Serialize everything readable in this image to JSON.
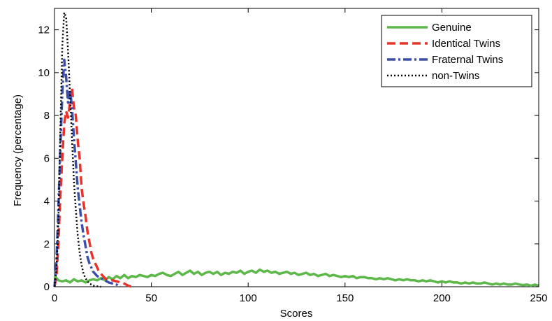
{
  "chart_data": {
    "type": "line",
    "title": "",
    "xlabel": "Scores",
    "ylabel": "Frequency (percentage)",
    "xlim": [
      0,
      250
    ],
    "ylim": [
      0,
      13
    ],
    "xticks": [
      0,
      50,
      100,
      150,
      200,
      250
    ],
    "yticks": [
      0,
      2,
      4,
      6,
      8,
      10,
      12
    ],
    "grid": false,
    "legend_position": "top-right",
    "series": [
      {
        "name": "Genuine",
        "color": "#5cb848",
        "style": "solid",
        "x": [
          0,
          2,
          4,
          6,
          8,
          10,
          12,
          14,
          16,
          18,
          20,
          22,
          24,
          26,
          28,
          30,
          32,
          34,
          36,
          38,
          40,
          42,
          44,
          46,
          48,
          50,
          52,
          54,
          56,
          58,
          60,
          62,
          64,
          66,
          68,
          70,
          72,
          74,
          76,
          78,
          80,
          82,
          84,
          86,
          88,
          90,
          92,
          94,
          96,
          98,
          100,
          102,
          104,
          106,
          108,
          110,
          112,
          114,
          116,
          118,
          120,
          122,
          124,
          126,
          128,
          130,
          132,
          134,
          136,
          138,
          140,
          142,
          144,
          146,
          148,
          150,
          152,
          154,
          156,
          158,
          160,
          162,
          164,
          166,
          168,
          170,
          172,
          174,
          176,
          178,
          180,
          182,
          184,
          186,
          188,
          190,
          192,
          194,
          196,
          198,
          200,
          202,
          204,
          206,
          208,
          210,
          212,
          214,
          216,
          218,
          220,
          222,
          224,
          226,
          228,
          230,
          232,
          234,
          236,
          238,
          240,
          242,
          244,
          246,
          248,
          250
        ],
        "y": [
          0.5,
          0.3,
          0.25,
          0.3,
          0.2,
          0.35,
          0.25,
          0.3,
          0.2,
          0.3,
          0.35,
          0.3,
          0.4,
          0.3,
          0.45,
          0.35,
          0.5,
          0.4,
          0.55,
          0.4,
          0.5,
          0.45,
          0.55,
          0.5,
          0.45,
          0.55,
          0.5,
          0.6,
          0.65,
          0.55,
          0.5,
          0.6,
          0.7,
          0.55,
          0.65,
          0.75,
          0.6,
          0.7,
          0.55,
          0.65,
          0.7,
          0.6,
          0.7,
          0.55,
          0.65,
          0.6,
          0.7,
          0.65,
          0.75,
          0.6,
          0.7,
          0.75,
          0.65,
          0.8,
          0.7,
          0.75,
          0.65,
          0.7,
          0.6,
          0.65,
          0.7,
          0.6,
          0.65,
          0.55,
          0.6,
          0.65,
          0.55,
          0.6,
          0.5,
          0.55,
          0.6,
          0.5,
          0.55,
          0.5,
          0.45,
          0.5,
          0.45,
          0.5,
          0.4,
          0.45,
          0.45,
          0.4,
          0.4,
          0.35,
          0.4,
          0.35,
          0.4,
          0.35,
          0.3,
          0.35,
          0.3,
          0.35,
          0.3,
          0.3,
          0.25,
          0.3,
          0.25,
          0.3,
          0.25,
          0.2,
          0.25,
          0.2,
          0.25,
          0.2,
          0.2,
          0.15,
          0.2,
          0.15,
          0.2,
          0.15,
          0.15,
          0.2,
          0.15,
          0.1,
          0.15,
          0.1,
          0.15,
          0.1,
          0.1,
          0.15,
          0.1,
          0.08,
          0.1,
          0.05,
          0.1,
          0.05
        ]
      },
      {
        "name": "Identical Twins",
        "color": "#e8322b",
        "style": "dashed",
        "x": [
          0,
          1,
          2,
          3,
          4,
          5,
          6,
          7,
          8,
          9,
          10,
          11,
          12,
          13,
          14,
          15,
          16,
          17,
          18,
          19,
          20,
          21,
          22,
          23,
          24,
          25,
          26,
          27,
          28,
          30,
          32,
          34,
          36,
          38,
          40
        ],
        "y": [
          0,
          0.5,
          2.0,
          4.2,
          6.0,
          7.6,
          8.2,
          7.9,
          8.6,
          9.3,
          8.4,
          8.0,
          6.8,
          6.0,
          4.6,
          3.9,
          3.3,
          2.6,
          2.1,
          1.6,
          1.3,
          1.1,
          0.9,
          0.7,
          0.6,
          0.5,
          0.4,
          0.35,
          0.3,
          0.3,
          0.25,
          0.2,
          0.15,
          0.05,
          0.0
        ]
      },
      {
        "name": "Fraternal Twins",
        "color": "#3c4fa8",
        "style": "dashdot",
        "x": [
          0,
          1,
          2,
          3,
          4,
          5,
          6,
          7,
          8,
          9,
          10,
          11,
          12,
          13,
          14,
          15,
          16,
          17,
          18,
          19,
          20,
          21,
          22,
          23,
          24,
          25,
          26,
          27,
          28,
          30,
          32,
          34
        ],
        "y": [
          0,
          1.2,
          3.6,
          6.4,
          9.0,
          10.6,
          9.8,
          8.6,
          9.2,
          8.4,
          7.0,
          5.8,
          4.6,
          3.8,
          3.0,
          2.4,
          1.9,
          1.4,
          1.1,
          0.9,
          0.7,
          0.6,
          0.5,
          0.45,
          0.4,
          0.35,
          0.3,
          0.25,
          0.2,
          0.15,
          0.1,
          0.0
        ]
      },
      {
        "name": "non-Twins",
        "color": "#000000",
        "style": "dotted",
        "x": [
          0,
          1,
          2,
          3,
          4,
          5,
          6,
          7,
          8,
          9,
          10,
          11,
          12,
          13,
          14,
          15,
          16,
          17,
          18,
          19,
          20,
          22,
          24
        ],
        "y": [
          0,
          0.8,
          3.0,
          7.2,
          11.2,
          12.8,
          12.6,
          11.0,
          9.0,
          7.0,
          5.0,
          3.6,
          2.4,
          1.6,
          1.0,
          0.6,
          0.4,
          0.25,
          0.15,
          0.1,
          0.05,
          0.02,
          0.0
        ]
      }
    ]
  }
}
